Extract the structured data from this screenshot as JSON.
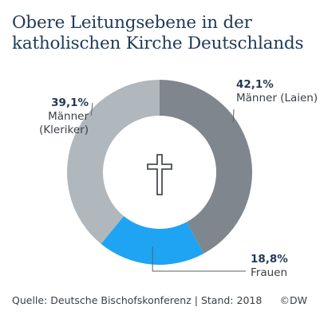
{
  "title_lines": [
    "Obere Leitungsebene in der",
    "katholischen Kirche Deutschlands"
  ],
  "chart_data": {
    "type": "pie",
    "variant": "donut",
    "title": "Obere Leitungsebene in der katholischen Kirche Deutschlands",
    "slices": [
      {
        "label": "Männer (Laien)",
        "label_lines": [
          "Männer (Laien)"
        ],
        "value": 42.1,
        "value_label": "42,1%",
        "color": "#7f868d"
      },
      {
        "label": "Frauen",
        "label_lines": [
          "Frauen"
        ],
        "value": 18.8,
        "value_label": "18,8%",
        "color": "#1fa3f3"
      },
      {
        "label": "Männer (Kleriker)",
        "label_lines": [
          "Männer",
          "(Kleriker)"
        ],
        "value": 39.1,
        "value_label": "39,1%",
        "color": "#b0b7bd"
      }
    ],
    "center_icon": "cross-icon",
    "legend": "none"
  },
  "footer": {
    "source": "Quelle: Deutsche Bischofskonferenz | Stand: 2018",
    "copyright": "©DW"
  }
}
